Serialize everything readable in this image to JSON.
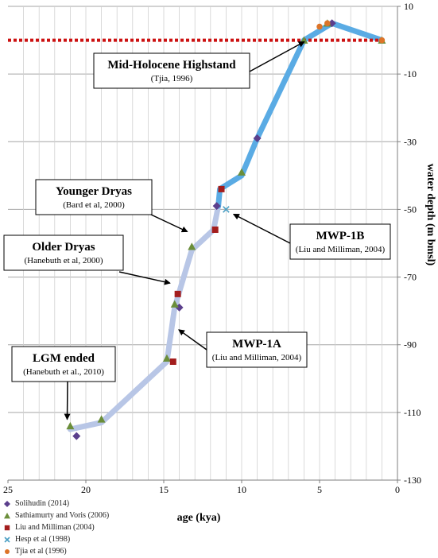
{
  "chart_data": {
    "type": "line",
    "xlabel": "age (kya)",
    "ylabel": "water depth (m bmsl)",
    "xlim": [
      25,
      0
    ],
    "ylim": [
      -130,
      10
    ],
    "x_ticks": [
      25,
      20,
      15,
      10,
      5,
      0
    ],
    "y_ticks": [
      10,
      -10,
      -30,
      -50,
      -70,
      -90,
      -110,
      -130
    ],
    "reference_line": {
      "y": 0,
      "style": "dotted",
      "color": "#cc1111"
    },
    "curve": {
      "segments": [
        {
          "color": "#b8c6e6",
          "points": [
            [
              21,
              -115
            ],
            [
              19,
              -113
            ],
            [
              14.8,
              -95
            ],
            [
              14.3,
              -79
            ],
            [
              13.2,
              -62
            ],
            [
              11.8,
              -56
            ],
            [
              11.5,
              -49
            ]
          ]
        },
        {
          "color": "#5aabe4",
          "points": [
            [
              11.5,
              -49
            ],
            [
              11.4,
              -44
            ],
            [
              10,
              -40
            ],
            [
              9,
              -29
            ],
            [
              6,
              0
            ],
            [
              4.2,
              5
            ],
            [
              1,
              0
            ]
          ]
        }
      ]
    },
    "series": [
      {
        "name": "Solihudin (2014)",
        "marker": "diamond",
        "color": "#5b3f8c",
        "points": [
          [
            20.6,
            -117
          ],
          [
            14,
            -79
          ],
          [
            11.6,
            -49
          ],
          [
            9,
            -29
          ],
          [
            4.2,
            5
          ]
        ]
      },
      {
        "name": "Sathiamurty and Voris (2006)",
        "marker": "triangle",
        "color": "#6b8e3a",
        "points": [
          [
            21,
            -114
          ],
          [
            19,
            -112
          ],
          [
            14.8,
            -94
          ],
          [
            14.3,
            -78
          ],
          [
            13.2,
            -61
          ],
          [
            10,
            -39
          ],
          [
            6,
            0
          ],
          [
            4.5,
            5
          ],
          [
            1,
            0
          ]
        ]
      },
      {
        "name": "Liu and Milliman (2004)",
        "marker": "square",
        "color": "#a31d1d",
        "points": [
          [
            14.4,
            -95
          ],
          [
            14.1,
            -75
          ],
          [
            11.7,
            -56
          ],
          [
            11.3,
            -44
          ]
        ]
      },
      {
        "name": "Hesp et al (1998)",
        "marker": "x",
        "color": "#4a9fc4",
        "points": [
          [
            11,
            -50
          ]
        ]
      },
      {
        "name": "Tjia et al (1996)",
        "marker": "circle",
        "color": "#dd7428",
        "points": [
          [
            5,
            4
          ],
          [
            4.5,
            5
          ],
          [
            1,
            0
          ]
        ]
      }
    ],
    "annotations": [
      {
        "title": "Mid-Holocene Highstand",
        "subtitle": "(Tjia,  1996)",
        "x": 5.8,
        "y": 0
      },
      {
        "title": "Younger  Dryas",
        "subtitle": "(Bard et al, 2000)",
        "x": 13.3,
        "y": -57
      },
      {
        "title": "Older  Dryas",
        "subtitle": "(Hanebuth et al, 2000)",
        "x": 14.4,
        "y": -72
      },
      {
        "title": "MWP-1B",
        "subtitle": "(Liu and Milliman, 2004)",
        "x": 10.7,
        "y": -51
      },
      {
        "title": "MWP-1A",
        "subtitle": "(Liu and Milliman, 2004)",
        "x": 14.2,
        "y": -85
      },
      {
        "title": "LGM ended",
        "subtitle": "(Hanebuth et al., 2010)",
        "x": 21.2,
        "y": -113
      }
    ]
  }
}
